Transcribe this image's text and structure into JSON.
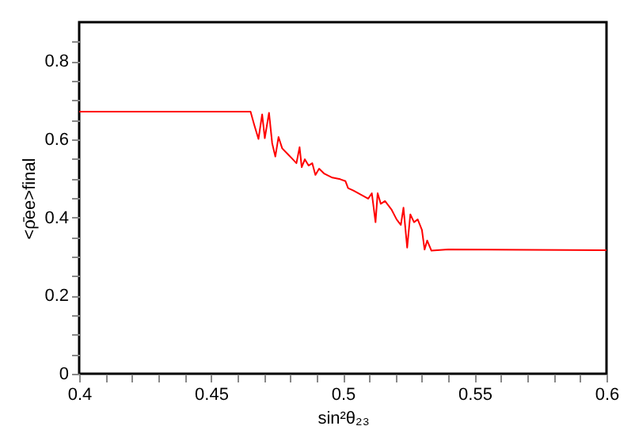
{
  "chart_data": {
    "type": "line",
    "xlabel": "sin²θ₂₃",
    "ylabel": "<ρ̄ee>final",
    "xlim": [
      0.4,
      0.6
    ],
    "ylim": [
      0,
      0.9
    ],
    "xticks": [
      0.4,
      {
        "value": 0.41,
        "label": null
      },
      {
        "value": 0.42,
        "label": null
      },
      {
        "value": 0.43,
        "label": null
      },
      {
        "value": 0.44,
        "label": null
      },
      0.45,
      {
        "value": 0.46,
        "label": null
      },
      {
        "value": 0.47,
        "label": null
      },
      {
        "value": 0.48,
        "label": null
      },
      {
        "value": 0.49,
        "label": null
      },
      0.5,
      {
        "value": 0.51,
        "label": null
      },
      {
        "value": 0.52,
        "label": null
      },
      {
        "value": 0.53,
        "label": null
      },
      {
        "value": 0.54,
        "label": null
      },
      0.55,
      {
        "value": 0.56,
        "label": null
      },
      {
        "value": 0.57,
        "label": null
      },
      {
        "value": 0.58,
        "label": null
      },
      {
        "value": 0.59,
        "label": null
      },
      0.6
    ],
    "yticks": [
      0,
      {
        "value": 0.05,
        "label": null
      },
      {
        "value": 0.1,
        "label": null
      },
      {
        "value": 0.15,
        "label": null
      },
      0.2,
      {
        "value": 0.25,
        "label": null
      },
      {
        "value": 0.3,
        "label": null
      },
      {
        "value": 0.35,
        "label": null
      },
      0.4,
      {
        "value": 0.45,
        "label": null
      },
      {
        "value": 0.5,
        "label": null
      },
      {
        "value": 0.55,
        "label": null
      },
      0.6,
      {
        "value": 0.65,
        "label": null
      },
      {
        "value": 0.7,
        "label": null
      },
      {
        "value": 0.75,
        "label": null
      },
      0.8,
      {
        "value": 0.85,
        "label": null
      }
    ],
    "grid": false,
    "marker": "none",
    "line_style": "solid",
    "series": [
      {
        "color": "#ff0000",
        "x": [
          0.4,
          0.465,
          0.4664,
          0.468,
          0.4694,
          0.4704,
          0.472,
          0.4732,
          0.4744,
          0.4756,
          0.477,
          0.479,
          0.481,
          0.4824,
          0.4836,
          0.4844,
          0.4856,
          0.487,
          0.4884,
          0.4896,
          0.491,
          0.493,
          0.496,
          0.499,
          0.501,
          0.502,
          0.504,
          0.507,
          0.5096,
          0.511,
          0.5124,
          0.5132,
          0.5144,
          0.516,
          0.5184,
          0.5204,
          0.522,
          0.523,
          0.5244,
          0.5256,
          0.527,
          0.5284,
          0.53,
          0.531,
          0.532,
          0.5336,
          0.54,
          0.6
        ],
        "values": [
          0.671,
          0.671,
          0.637,
          0.601,
          0.664,
          0.603,
          0.668,
          0.59,
          0.556,
          0.606,
          0.577,
          0.563,
          0.549,
          0.539,
          0.58,
          0.529,
          0.549,
          0.533,
          0.539,
          0.509,
          0.525,
          0.512,
          0.502,
          0.498,
          0.493,
          0.475,
          0.469,
          0.458,
          0.448,
          0.462,
          0.388,
          0.462,
          0.435,
          0.442,
          0.421,
          0.395,
          0.381,
          0.425,
          0.323,
          0.408,
          0.388,
          0.395,
          0.368,
          0.318,
          0.341,
          0.315,
          0.318,
          0.316
        ]
      }
    ]
  }
}
